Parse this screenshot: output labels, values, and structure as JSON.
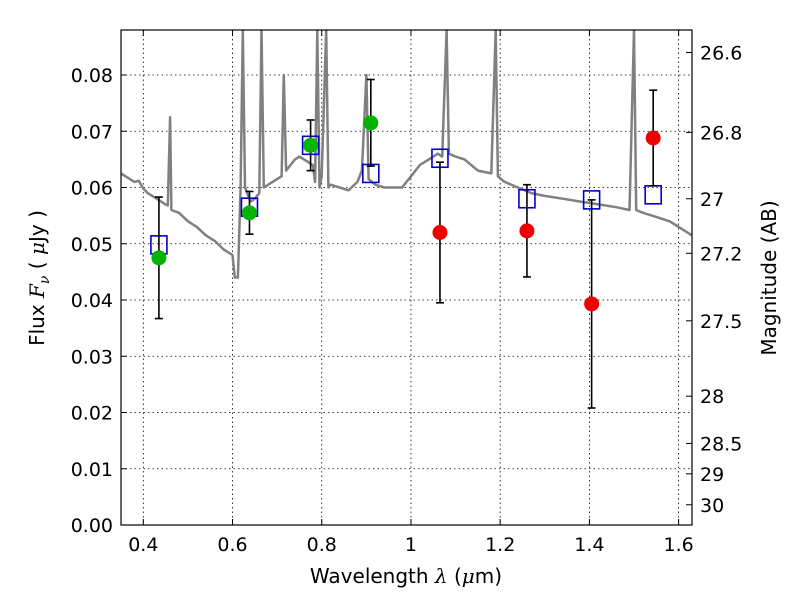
{
  "chart_data": {
    "type": "scatter",
    "title": "",
    "xlabel": {
      "prefix": "Wavelength  ",
      "symbol": "λ",
      "mid": " (",
      "mu": "μ",
      "suffix": "m)"
    },
    "ylabel": {
      "prefix": "Flux  ",
      "symbol": "F",
      "sub": "ν",
      "mid": "  ( ",
      "mu": "μ",
      "suffix": "Jy )"
    },
    "y2label": "Magnitude (AB)",
    "xlim": [
      0.35,
      1.63
    ],
    "ylim": [
      0.0,
      0.088
    ],
    "grid": true,
    "x_ticks": [
      0.4,
      0.6,
      0.8,
      1.0,
      1.2,
      1.4,
      1.6
    ],
    "x_tick_labels": [
      "0.4",
      "0.6",
      "0.8",
      "1",
      "1.2",
      "1.4",
      "1.6"
    ],
    "y_ticks": [
      0.0,
      0.01,
      0.02,
      0.03,
      0.04,
      0.05,
      0.06,
      0.07,
      0.08
    ],
    "y_tick_labels": [
      "0.00",
      "0.01",
      "0.02",
      "0.03",
      "0.04",
      "0.05",
      "0.06",
      "0.07",
      "0.08"
    ],
    "y2_ticks": [
      {
        "label": "26.6",
        "flux": 0.084
      },
      {
        "label": "26.8",
        "flux": 0.0698
      },
      {
        "label": "27",
        "flux": 0.058
      },
      {
        "label": "27.2",
        "flux": 0.0483
      },
      {
        "label": "27.5",
        "flux": 0.0363
      },
      {
        "label": "28",
        "flux": 0.0229
      },
      {
        "label": "28.5",
        "flux": 0.0145
      },
      {
        "label": "29",
        "flux": 0.0091
      },
      {
        "label": "30",
        "flux": 0.0036
      }
    ],
    "series": [
      {
        "kind": "spectrum",
        "color": "#808080",
        "points": [
          [
            0.35,
            0.0625
          ],
          [
            0.36,
            0.062
          ],
          [
            0.37,
            0.0615
          ],
          [
            0.38,
            0.061
          ],
          [
            0.39,
            0.0612
          ],
          [
            0.4,
            0.0598
          ],
          [
            0.41,
            0.059
          ],
          [
            0.42,
            0.0585
          ],
          [
            0.43,
            0.058
          ],
          [
            0.44,
            0.0575
          ],
          [
            0.45,
            0.057
          ],
          [
            0.455,
            0.0568
          ],
          [
            0.46,
            0.0725
          ],
          [
            0.463,
            0.056
          ],
          [
            0.48,
            0.0555
          ],
          [
            0.5,
            0.054
          ],
          [
            0.52,
            0.053
          ],
          [
            0.54,
            0.0515
          ],
          [
            0.56,
            0.0505
          ],
          [
            0.58,
            0.049
          ],
          [
            0.6,
            0.048
          ],
          [
            0.605,
            0.044
          ],
          [
            0.612,
            0.044
          ],
          [
            0.618,
            0.06
          ],
          [
            0.623,
            0.088
          ],
          [
            0.628,
            0.06
          ],
          [
            0.64,
            0.0575
          ],
          [
            0.65,
            0.058
          ],
          [
            0.66,
            0.059
          ],
          [
            0.665,
            0.088
          ],
          [
            0.67,
            0.06
          ],
          [
            0.68,
            0.0605
          ],
          [
            0.7,
            0.0615
          ],
          [
            0.71,
            0.062
          ],
          [
            0.715,
            0.08
          ],
          [
            0.72,
            0.063
          ],
          [
            0.73,
            0.064
          ],
          [
            0.74,
            0.065
          ],
          [
            0.75,
            0.0655
          ],
          [
            0.76,
            0.065
          ],
          [
            0.77,
            0.0645
          ],
          [
            0.78,
            0.064
          ],
          [
            0.785,
            0.061
          ],
          [
            0.79,
            0.088
          ],
          [
            0.795,
            0.06
          ],
          [
            0.8,
            0.062
          ],
          [
            0.81,
            0.088
          ],
          [
            0.815,
            0.06
          ],
          [
            0.82,
            0.0605
          ],
          [
            0.84,
            0.06
          ],
          [
            0.86,
            0.0595
          ],
          [
            0.88,
            0.061
          ],
          [
            0.89,
            0.063
          ],
          [
            0.9,
            0.08
          ],
          [
            0.905,
            0.0615
          ],
          [
            0.92,
            0.0605
          ],
          [
            0.94,
            0.06
          ],
          [
            0.96,
            0.06
          ],
          [
            0.98,
            0.06
          ],
          [
            1.0,
            0.062
          ],
          [
            1.02,
            0.064
          ],
          [
            1.04,
            0.065
          ],
          [
            1.06,
            0.066
          ],
          [
            1.07,
            0.0655
          ],
          [
            1.08,
            0.088
          ],
          [
            1.085,
            0.066
          ],
          [
            1.1,
            0.0655
          ],
          [
            1.12,
            0.065
          ],
          [
            1.15,
            0.063
          ],
          [
            1.18,
            0.0625
          ],
          [
            1.19,
            0.088
          ],
          [
            1.195,
            0.062
          ],
          [
            1.21,
            0.061
          ],
          [
            1.24,
            0.06
          ],
          [
            1.27,
            0.059
          ],
          [
            1.3,
            0.0585
          ],
          [
            1.34,
            0.058
          ],
          [
            1.38,
            0.0575
          ],
          [
            1.42,
            0.057
          ],
          [
            1.46,
            0.0565
          ],
          [
            1.49,
            0.056
          ],
          [
            1.5,
            0.088
          ],
          [
            1.505,
            0.056
          ],
          [
            1.52,
            0.0555
          ],
          [
            1.54,
            0.055
          ],
          [
            1.56,
            0.0545
          ],
          [
            1.58,
            0.054
          ],
          [
            1.6,
            0.053
          ],
          [
            1.63,
            0.0515
          ]
        ]
      },
      {
        "kind": "squares",
        "color": "#0000cc",
        "points": [
          [
            0.435,
            0.0498
          ],
          [
            0.638,
            0.0565
          ],
          [
            0.775,
            0.0675
          ],
          [
            0.91,
            0.0625
          ],
          [
            1.065,
            0.0652
          ],
          [
            1.26,
            0.058
          ],
          [
            1.405,
            0.0578
          ],
          [
            1.543,
            0.0587
          ]
        ]
      },
      {
        "kind": "green-points",
        "color": "#00b400",
        "points": [
          [
            0.435,
            0.0475
          ],
          [
            0.638,
            0.0555
          ],
          [
            0.775,
            0.0675
          ],
          [
            0.91,
            0.0715
          ]
        ],
        "errors": [
          0.0108,
          0.0038,
          0.0045,
          0.0077
        ]
      },
      {
        "kind": "red-points",
        "color": "#ee0000",
        "points": [
          [
            1.065,
            0.052
          ],
          [
            1.26,
            0.0523
          ],
          [
            1.405,
            0.0393
          ],
          [
            1.543,
            0.0688
          ]
        ],
        "errors": [
          0.0125,
          0.0082,
          0.0185,
          0.0085
        ]
      }
    ]
  }
}
